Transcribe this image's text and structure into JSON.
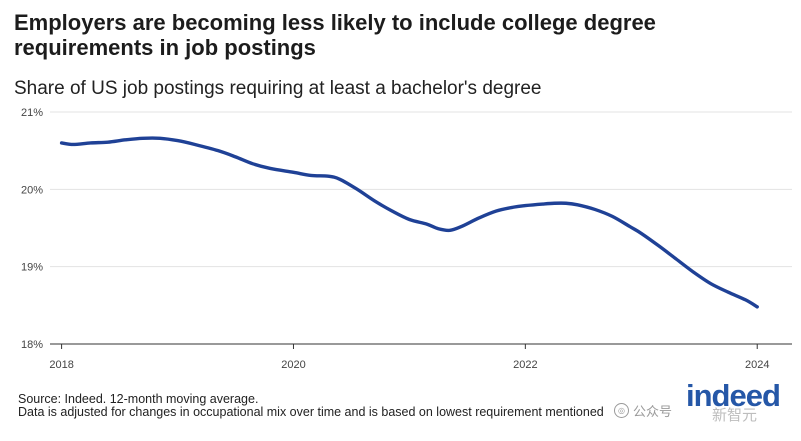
{
  "header": {
    "title": "Employers are becoming less likely to include college degree requirements in job postings",
    "subtitle": "Share of US job postings requiring at least a bachelor's degree"
  },
  "footer": {
    "source": "Source: Indeed. 12-month moving average.",
    "note": "Data is adjusted for changes in occupational mix over time and is based on lowest requirement mentioned"
  },
  "watermark": {
    "text": "公众号",
    "overlay": "新智元"
  },
  "logo": {
    "text": "indeed",
    "color": "#2557a7"
  },
  "chart_data": {
    "type": "line",
    "title": "Employers are becoming less likely to include college degree requirements in job postings",
    "subtitle": "Share of US job postings requiring at least a bachelor's degree",
    "xlabel": "",
    "ylabel": "",
    "xlim": [
      2017.9,
      2024.3
    ],
    "ylim": [
      18.0,
      21.0
    ],
    "x_ticks": [
      2018,
      2020,
      2022,
      2024
    ],
    "x_tick_labels": [
      "2018",
      "2020",
      "2022",
      "2024"
    ],
    "y_ticks": [
      18,
      19,
      20,
      21
    ],
    "y_tick_labels": [
      "18%",
      "19%",
      "20%",
      "21%"
    ],
    "grid": "horizontal",
    "line_color": "#1f4196",
    "series": [
      {
        "name": "",
        "x": [
          2018.0,
          2018.1,
          2018.25,
          2018.4,
          2018.55,
          2018.7,
          2018.85,
          2019.0,
          2019.15,
          2019.35,
          2019.5,
          2019.65,
          2019.8,
          2020.0,
          2020.15,
          2020.3,
          2020.4,
          2020.55,
          2020.7,
          2020.85,
          2021.0,
          2021.15,
          2021.25,
          2021.35,
          2021.45,
          2021.6,
          2021.75,
          2021.9,
          2022.0,
          2022.15,
          2022.25,
          2022.35,
          2022.45,
          2022.6,
          2022.75,
          2022.9,
          2023.0,
          2023.15,
          2023.3,
          2023.45,
          2023.6,
          2023.75,
          2023.9,
          2024.0
        ],
        "y": [
          20.6,
          20.58,
          20.6,
          20.61,
          20.64,
          20.66,
          20.66,
          20.63,
          20.58,
          20.5,
          20.42,
          20.33,
          20.27,
          20.22,
          20.18,
          20.17,
          20.13,
          20.0,
          19.85,
          19.72,
          19.61,
          19.55,
          19.49,
          19.47,
          19.52,
          19.63,
          19.72,
          19.77,
          19.79,
          19.81,
          19.82,
          19.82,
          19.8,
          19.74,
          19.65,
          19.52,
          19.43,
          19.27,
          19.1,
          18.93,
          18.78,
          18.67,
          18.57,
          18.48
        ]
      }
    ]
  }
}
